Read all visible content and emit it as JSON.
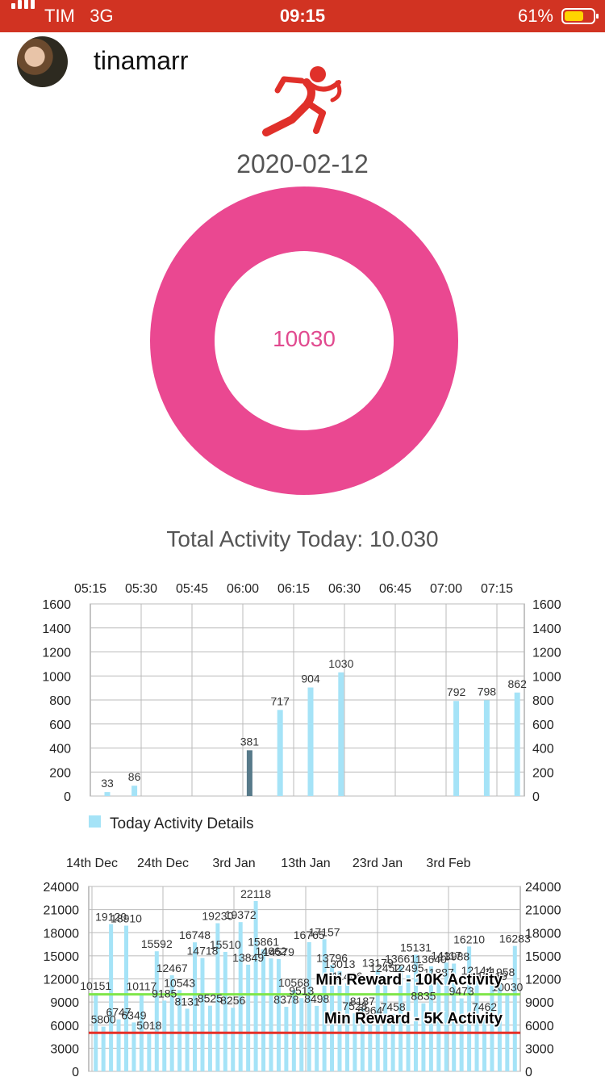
{
  "status_bar": {
    "carrier": "TIM",
    "network": "3G",
    "time": "09:15",
    "battery": "61%"
  },
  "profile": {
    "username": "tinamarr"
  },
  "summary": {
    "date": "2020-02-12",
    "donut_value": "10030",
    "total_label": "Total Activity Today: 10.030"
  },
  "colors": {
    "status_bar": "#d13322",
    "donut": "#ea4891",
    "bar": "#a5e3f7",
    "bar_highlight": "#577a8a",
    "line_10k": "#7fe64a",
    "line_5k": "#e63028"
  },
  "chart_data": [
    {
      "type": "bar",
      "x_ticks": [
        "05:15",
        "05:30",
        "05:45",
        "06:00",
        "06:15",
        "06:30",
        "06:45",
        "07:00",
        "07:15"
      ],
      "y_ticks": [
        "0",
        "200",
        "400",
        "600",
        "800",
        "1000",
        "1200",
        "1400",
        "1600"
      ],
      "ylim": [
        0,
        1600
      ],
      "legend": "Today Activity Details",
      "bars": [
        {
          "x": "05:20",
          "value": 33,
          "label": "33"
        },
        {
          "x": "05:28",
          "value": 86,
          "label": "86"
        },
        {
          "x": "06:02",
          "value": 381,
          "label": "381",
          "highlight": true
        },
        {
          "x": "06:11",
          "value": 717,
          "label": "717"
        },
        {
          "x": "06:20",
          "value": 904,
          "label": "904"
        },
        {
          "x": "06:29",
          "value": 1030,
          "label": "1030"
        },
        {
          "x": "07:03",
          "value": 792,
          "label": "792"
        },
        {
          "x": "07:12",
          "value": 798,
          "label": "798"
        },
        {
          "x": "07:21",
          "value": 862,
          "label": "862"
        }
      ]
    },
    {
      "type": "bar",
      "x_ticks": [
        "14th Dec",
        "24th Dec",
        "3rd Jan",
        "13th Jan",
        "23rd Jan",
        "3rd Feb"
      ],
      "y_ticks": [
        "0",
        "3000",
        "6000",
        "9000",
        "12000",
        "15000",
        "18000",
        "21000",
        "24000"
      ],
      "ylim": [
        0,
        24000
      ],
      "values": [
        10151,
        5800,
        19120,
        6747,
        18910,
        6349,
        10117,
        5018,
        15592,
        9185,
        12467,
        10543,
        8131,
        16748,
        14718,
        8525,
        19230,
        15510,
        8256,
        19372,
        13849,
        22118,
        15861,
        14662,
        14579,
        8378,
        10568,
        9513,
        16765,
        8498,
        17157,
        13796,
        13013,
        11406,
        7528,
        8187,
        6964,
        13179,
        12452,
        7458,
        13661,
        12495,
        15131,
        8835,
        13640,
        11887,
        14117,
        13988,
        9473,
        16210,
        12144,
        7462,
        11419,
        11958,
        10030,
        16283
      ],
      "labels": [
        "10151",
        "5800",
        "19120",
        "6747",
        "18910",
        "6349",
        "10117",
        "5018",
        "15592",
        "9185",
        "12467",
        "10543",
        "8131",
        "16748",
        "14718",
        "8525",
        "19230",
        "15510",
        "8256",
        "19372",
        "13849",
        "22118",
        "15861",
        "14662",
        "14579",
        "8378",
        "10568",
        "9513",
        "16765",
        "8498",
        "17157",
        "13796",
        "13013",
        "11406",
        "7528",
        "8187",
        "6964",
        "13179",
        "12452",
        "7458",
        "13661",
        "12495",
        "15131",
        "8835",
        "13640",
        "11887",
        "14117",
        "13988",
        "9473",
        "16210",
        "12144",
        "7462",
        "11419",
        "11958",
        "10030",
        "16283"
      ],
      "reference_lines": [
        {
          "value": 10000,
          "label": "Min Reward - 10K Activity",
          "color": "#7fe64a"
        },
        {
          "value": 5000,
          "label": "Min Reward - 5K Activity",
          "color": "#e63028"
        }
      ]
    }
  ]
}
